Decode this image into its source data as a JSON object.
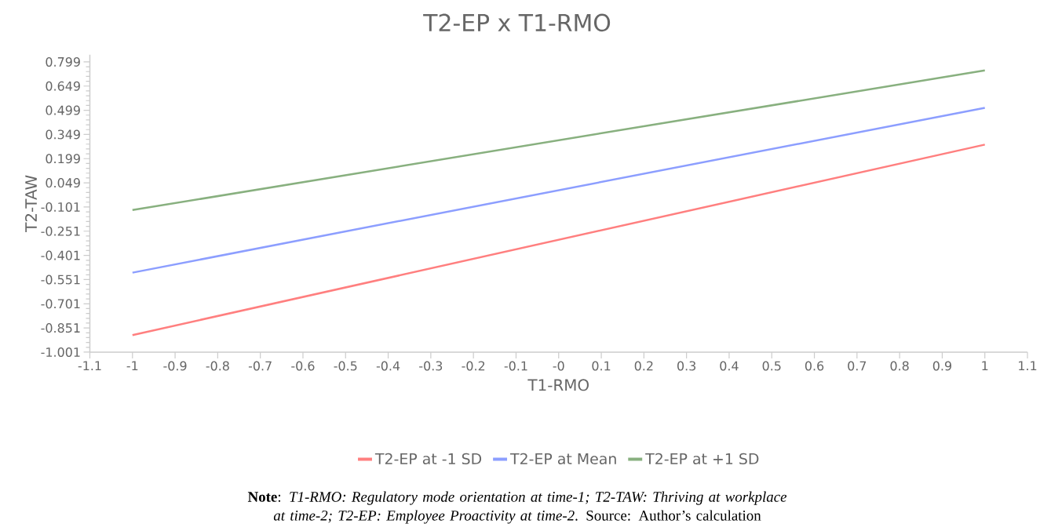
{
  "chart_data": {
    "type": "line",
    "title": "T2-EP x T1-RMO",
    "xlabel": "T1-RMO",
    "ylabel": "T2-TAW",
    "x": [
      -1,
      1
    ],
    "series": [
      {
        "name": "T2-EP at -1 SD",
        "color": "#ff7f7f",
        "values": [
          -0.895,
          0.286
        ]
      },
      {
        "name": "T2-EP at Mean",
        "color": "#8c9eff",
        "values": [
          -0.508,
          0.514
        ]
      },
      {
        "name": "T2-EP at +1 SD",
        "color": "#88b07f",
        "values": [
          -0.12,
          0.746
        ]
      }
    ],
    "xlim": [
      -1.1,
      1.1
    ],
    "xticks": [
      -1.1,
      -1,
      -0.9,
      -0.8,
      -0.7,
      -0.6,
      -0.5,
      -0.4,
      -0.3,
      -0.2,
      -0.1,
      {
        "value": 0,
        "label": "-0"
      },
      0.1,
      0.2,
      0.3,
      0.4,
      0.5,
      0.6,
      0.7,
      0.8,
      0.9,
      1,
      1.1
    ],
    "ylim": [
      -1.001,
      0.844
    ],
    "yticks": [
      -1.001,
      -0.851,
      -0.701,
      -0.551,
      -0.401,
      -0.251,
      -0.101,
      0.049,
      0.199,
      0.349,
      0.499,
      0.649,
      0.799
    ],
    "grid": false,
    "legend": "bottom",
    "line_style": "solid",
    "annotations": [
      "**Note**: *T1-RMO: Regulatory mode orientation at time-1; T2-TAW: Thriving at workplace at time-2; T2-EP: Employee Proactivity at time-2*. Source: Author’s calculation"
    ]
  }
}
